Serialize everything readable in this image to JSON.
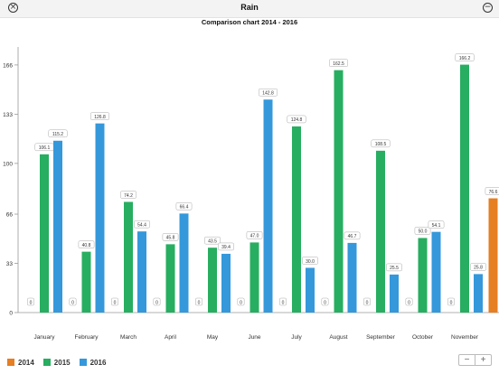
{
  "window": {
    "title": "Rain"
  },
  "icons": {
    "close": "close-circle-icon",
    "minimize": "minus-circle-icon"
  },
  "colors": {
    "2014": "#e67e22",
    "2015": "#27ae60",
    "2016": "#3498db"
  },
  "legend": [
    {
      "label": "2014",
      "color": "#e67e22"
    },
    {
      "label": "2015",
      "color": "#27ae60"
    },
    {
      "label": "2016",
      "color": "#3498db"
    }
  ],
  "zoom": {
    "minus": "−",
    "plus": "+"
  },
  "chart_data": {
    "type": "bar",
    "title": "Comparison chart  2014 - 2016",
    "categories": [
      "January",
      "February",
      "March",
      "April",
      "May",
      "June",
      "July",
      "August",
      "September",
      "October",
      "November",
      "D"
    ],
    "yticks": [
      "0",
      "33",
      "66",
      "100",
      "133",
      "166"
    ],
    "ylim": [
      0,
      172
    ],
    "grid": false,
    "legend_position": "bottom-left",
    "series": [
      {
        "name": "2014",
        "values": [
          0,
          0,
          0,
          0,
          0,
          0,
          0,
          0,
          0,
          0,
          0,
          76.6
        ],
        "labels": [
          "0",
          "0",
          "0",
          "0",
          "0",
          "0",
          "0",
          "0",
          "0",
          "0",
          "0",
          "76.6"
        ]
      },
      {
        "name": "2015",
        "values": [
          106.1,
          40.8,
          74.2,
          45.8,
          43.5,
          47.0,
          124.8,
          162.5,
          108.5,
          50.0,
          166.2,
          null
        ],
        "labels": [
          "106.1",
          "40.8",
          "74.2",
          "45.8",
          "43.5",
          "47.0",
          "124.8",
          "162.5",
          "108.5",
          "50.0",
          "166.2",
          ""
        ]
      },
      {
        "name": "2016",
        "values": [
          115.2,
          126.8,
          54.4,
          66.4,
          39.4,
          142.8,
          30.0,
          46.7,
          25.5,
          54.1,
          25.8,
          null
        ],
        "labels": [
          "115.2",
          "126.8",
          "54.4",
          "66.4",
          "39.4",
          "142.8",
          "30.0",
          "46.7",
          "25.5",
          "54.1",
          "25.8",
          ""
        ]
      }
    ]
  }
}
